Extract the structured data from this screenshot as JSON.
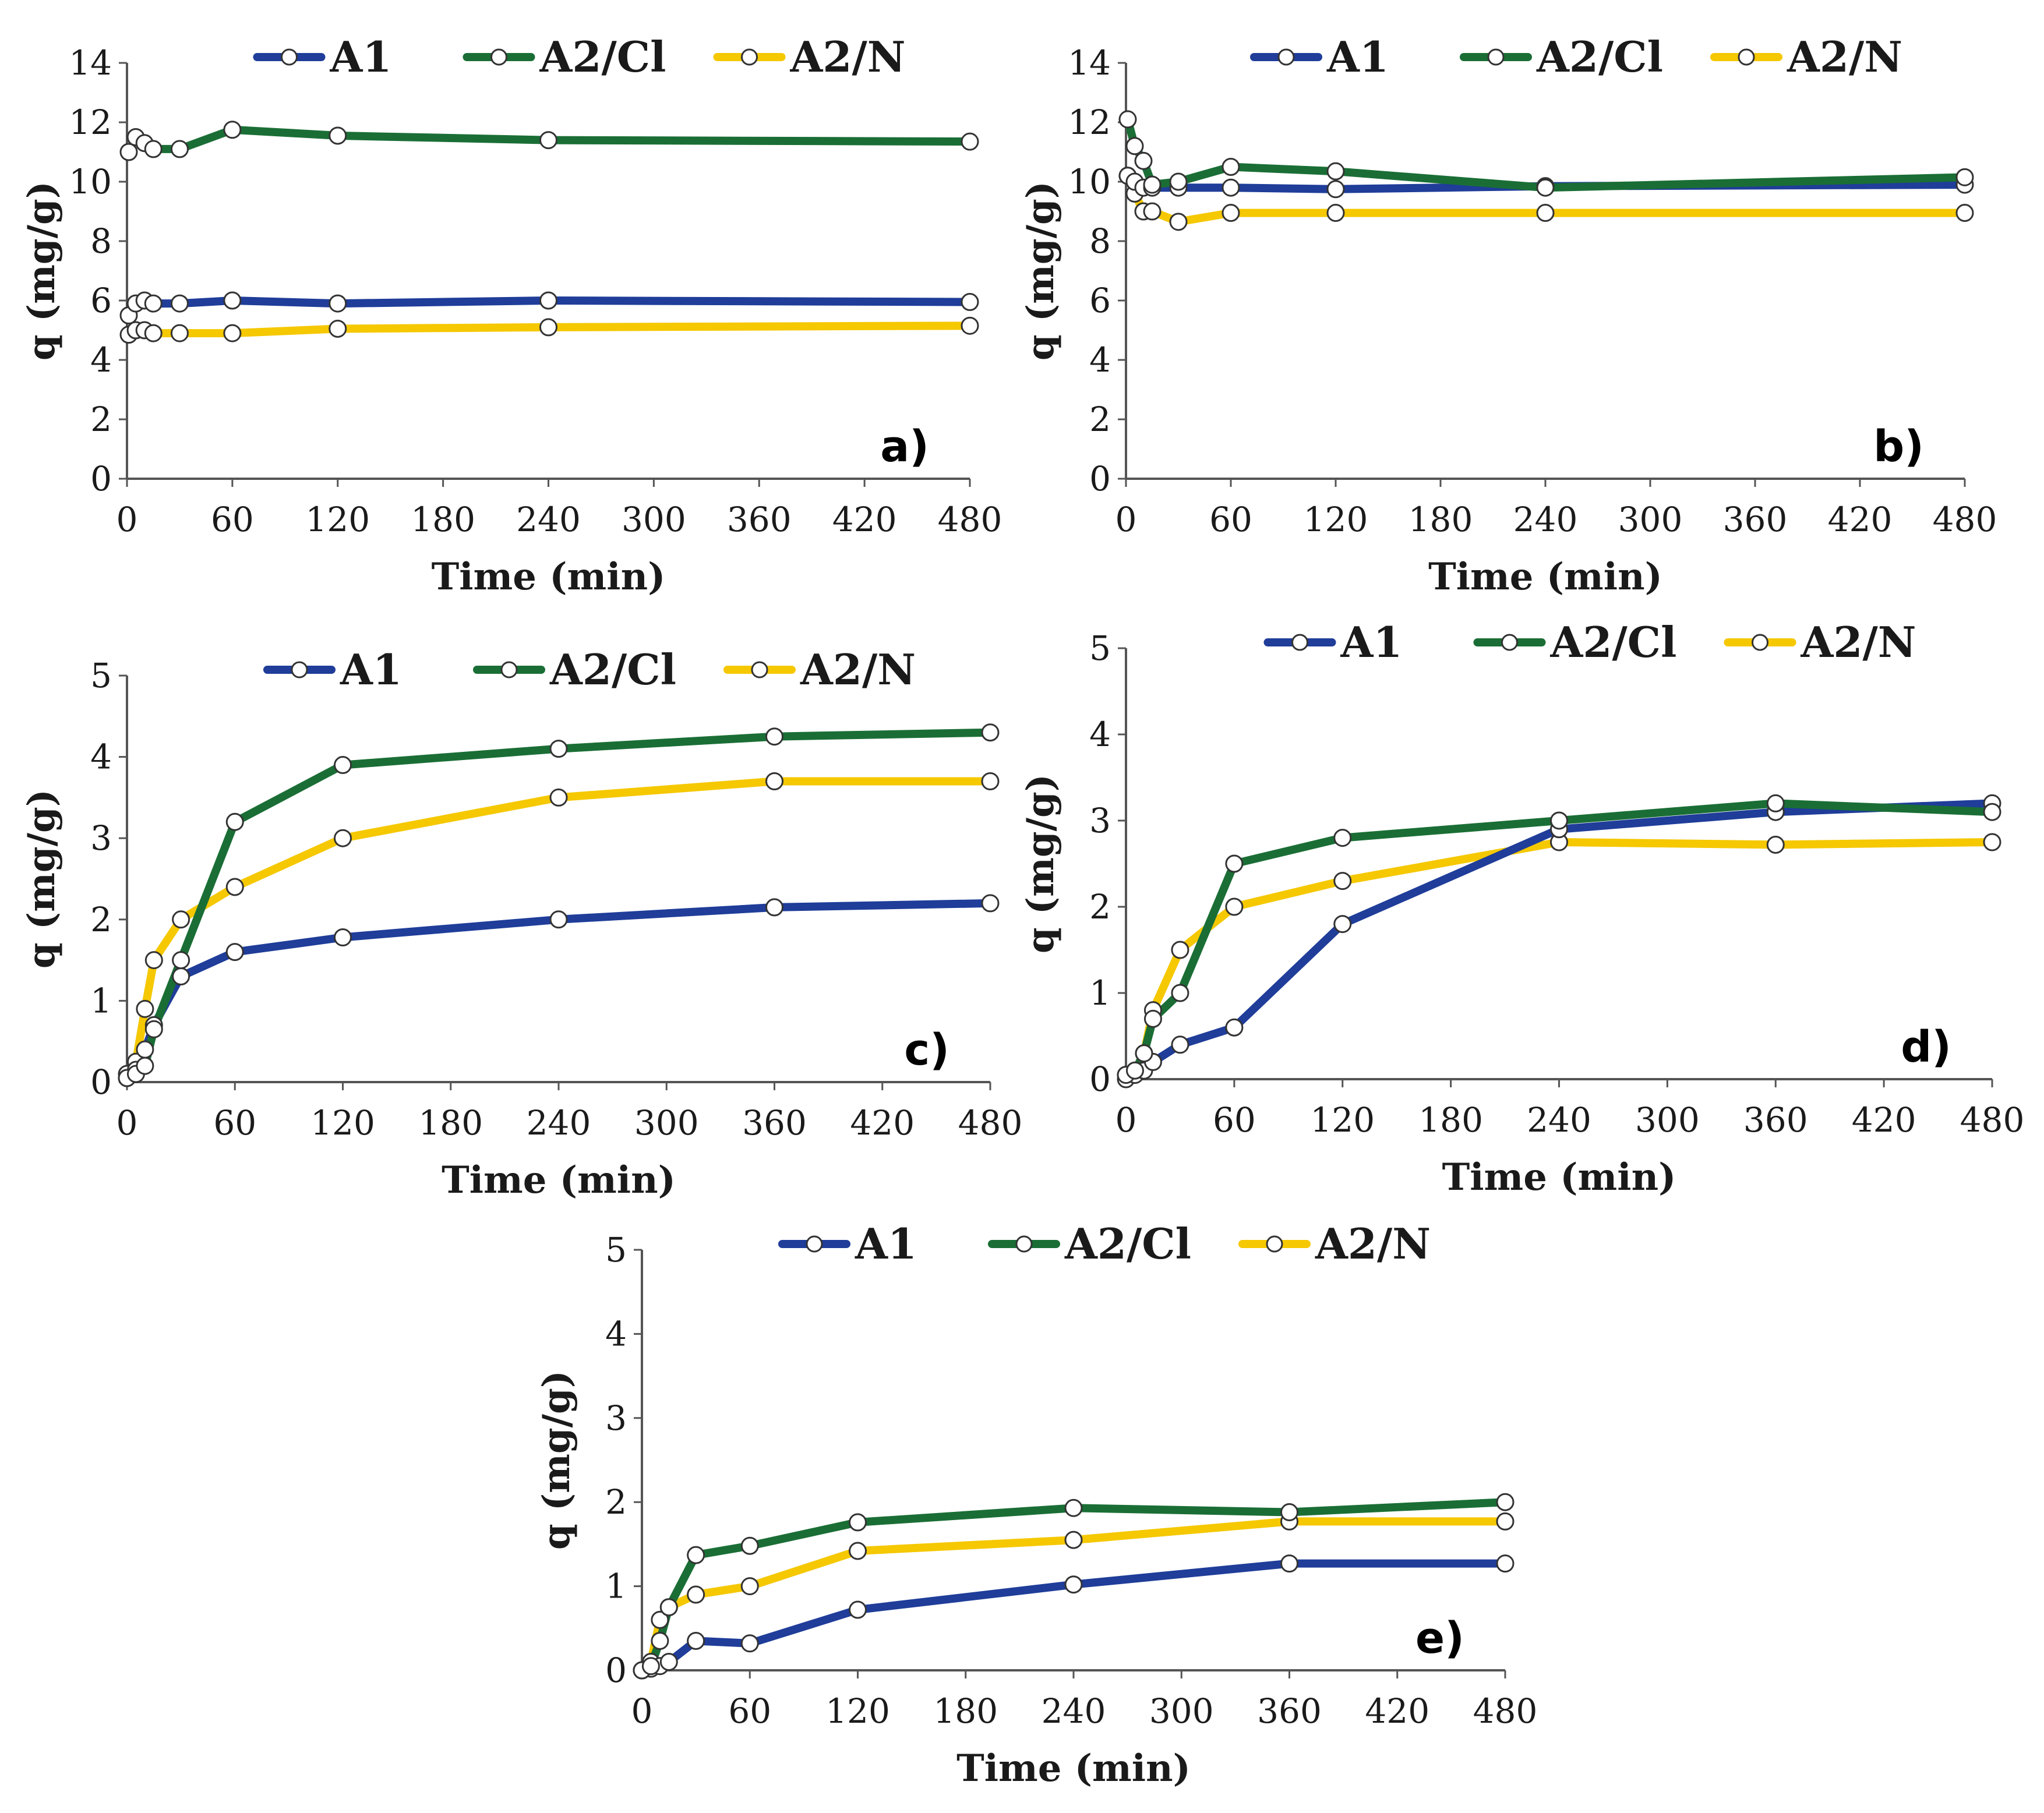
{
  "colors": {
    "A1": "#1f3d99",
    "A2/Cl": "#1a6e35",
    "A2/N": "#f5c800"
  },
  "chart_data": [
    {
      "type": "line",
      "panel_label": "a)",
      "xlabel": "Time (min)",
      "ylabel": "q (mg/g)",
      "xlim": [
        0,
        480
      ],
      "ylim": [
        0,
        14
      ],
      "xticks": [
        0,
        60,
        120,
        180,
        240,
        300,
        360,
        420,
        480
      ],
      "yticks": [
        0,
        2,
        4,
        6,
        8,
        10,
        12,
        14
      ],
      "legend": [
        "A1",
        "A2/Cl",
        "A2/N"
      ],
      "series": [
        {
          "name": "A1",
          "x": [
            1,
            5,
            10,
            15,
            30,
            60,
            120,
            240,
            480
          ],
          "y": [
            5.5,
            5.9,
            6.0,
            5.9,
            5.9,
            6.0,
            5.9,
            6.0,
            5.95
          ]
        },
        {
          "name": "A2/Cl",
          "x": [
            1,
            5,
            10,
            15,
            30,
            60,
            120,
            240,
            480
          ],
          "y": [
            11.0,
            11.5,
            11.3,
            11.1,
            11.1,
            11.75,
            11.55,
            11.4,
            11.35
          ]
        },
        {
          "name": "A2/N",
          "x": [
            1,
            5,
            10,
            15,
            30,
            60,
            120,
            240,
            480
          ],
          "y": [
            4.85,
            5.0,
            5.0,
            4.9,
            4.9,
            4.9,
            5.05,
            5.1,
            5.15
          ]
        }
      ]
    },
    {
      "type": "line",
      "panel_label": "b)",
      "xlabel": "Time (min)",
      "ylabel": "q (mg/g)",
      "xlim": [
        0,
        480
      ],
      "ylim": [
        0,
        14
      ],
      "xticks": [
        0,
        60,
        120,
        180,
        240,
        300,
        360,
        420,
        480
      ],
      "yticks": [
        0,
        2,
        4,
        6,
        8,
        10,
        12,
        14
      ],
      "legend": [
        "A1",
        "A2/Cl",
        "A2/N"
      ],
      "series": [
        {
          "name": "A1",
          "x": [
            1,
            5,
            10,
            15,
            30,
            60,
            120,
            240,
            480
          ],
          "y": [
            10.2,
            10.0,
            9.8,
            9.8,
            9.8,
            9.8,
            9.75,
            9.85,
            9.9
          ]
        },
        {
          "name": "A2/Cl",
          "x": [
            1,
            5,
            10,
            15,
            30,
            60,
            120,
            240,
            480
          ],
          "y": [
            12.1,
            11.2,
            10.7,
            9.9,
            10.0,
            10.5,
            10.35,
            9.8,
            10.15
          ]
        },
        {
          "name": "A2/N",
          "x": [
            1,
            5,
            10,
            15,
            30,
            60,
            120,
            240,
            480
          ],
          "y": [
            10.2,
            9.6,
            9.0,
            9.0,
            8.65,
            8.95,
            8.95,
            8.95,
            8.95
          ]
        }
      ]
    },
    {
      "type": "line",
      "panel_label": "c)",
      "xlabel": "Time (min)",
      "ylabel": "q (mg/g)",
      "xlim": [
        0,
        480
      ],
      "ylim": [
        0,
        5
      ],
      "xticks": [
        0,
        60,
        120,
        180,
        240,
        300,
        360,
        420,
        480
      ],
      "yticks": [
        0,
        1,
        2,
        3,
        4,
        5
      ],
      "legend": [
        "A1",
        "A2/Cl",
        "A2/N"
      ],
      "series": [
        {
          "name": "A1",
          "x": [
            0,
            5,
            10,
            15,
            30,
            60,
            120,
            240,
            360,
            480
          ],
          "y": [
            0.05,
            0.15,
            0.4,
            0.7,
            1.3,
            1.6,
            1.78,
            2.0,
            2.15,
            2.2
          ]
        },
        {
          "name": "A2/Cl",
          "x": [
            0,
            5,
            10,
            15,
            30,
            60,
            120,
            240,
            360,
            480
          ],
          "y": [
            0.05,
            0.1,
            0.2,
            0.65,
            1.5,
            3.2,
            3.9,
            4.1,
            4.25,
            4.3
          ]
        },
        {
          "name": "A2/N",
          "x": [
            0,
            5,
            10,
            15,
            30,
            60,
            120,
            240,
            360,
            480
          ],
          "y": [
            0.1,
            0.25,
            0.9,
            1.5,
            2.0,
            2.4,
            3.0,
            3.5,
            3.7,
            3.7
          ]
        }
      ]
    },
    {
      "type": "line",
      "panel_label": "d)",
      "xlabel": "Time (min)",
      "ylabel": "q (mg/g)",
      "xlim": [
        0,
        480
      ],
      "ylim": [
        0,
        5
      ],
      "xticks": [
        0,
        60,
        120,
        180,
        240,
        300,
        360,
        420,
        480
      ],
      "yticks": [
        0,
        1,
        2,
        3,
        4,
        5
      ],
      "legend": [
        "A1",
        "A2/Cl",
        "A2/N"
      ],
      "series": [
        {
          "name": "A1",
          "x": [
            0,
            5,
            10,
            15,
            30,
            60,
            120,
            240,
            360,
            480
          ],
          "y": [
            0.0,
            0.05,
            0.1,
            0.2,
            0.4,
            0.6,
            1.8,
            2.9,
            3.1,
            3.2
          ]
        },
        {
          "name": "A2/Cl",
          "x": [
            0,
            5,
            10,
            15,
            30,
            60,
            120,
            240,
            360,
            480
          ],
          "y": [
            0.05,
            0.1,
            0.3,
            0.7,
            1.0,
            2.5,
            2.8,
            3.0,
            3.2,
            3.1
          ]
        },
        {
          "name": "A2/N",
          "x": [
            0,
            5,
            10,
            15,
            30,
            60,
            120,
            240,
            360,
            480
          ],
          "y": [
            0.05,
            0.1,
            0.3,
            0.8,
            1.5,
            2.0,
            2.3,
            2.75,
            2.72,
            2.75
          ]
        }
      ]
    },
    {
      "type": "line",
      "panel_label": "e)",
      "xlabel": "Time (min)",
      "ylabel": "q (mg/g)",
      "xlim": [
        0,
        480
      ],
      "ylim": [
        0,
        5
      ],
      "xticks": [
        0,
        60,
        120,
        180,
        240,
        300,
        360,
        420,
        480
      ],
      "yticks": [
        0,
        1,
        2,
        3,
        4,
        5
      ],
      "legend": [
        "A1",
        "A2/Cl",
        "A2/N"
      ],
      "series": [
        {
          "name": "A1",
          "x": [
            0,
            5,
            10,
            15,
            30,
            60,
            120,
            240,
            360,
            480
          ],
          "y": [
            0.0,
            0.02,
            0.05,
            0.1,
            0.35,
            0.32,
            0.72,
            1.02,
            1.27,
            1.27
          ]
        },
        {
          "name": "A2/Cl",
          "x": [
            0,
            5,
            10,
            15,
            30,
            60,
            120,
            240,
            360,
            480
          ],
          "y": [
            0.0,
            0.05,
            0.35,
            0.75,
            1.37,
            1.48,
            1.76,
            1.93,
            1.88,
            2.0
          ]
        },
        {
          "name": "A2/N",
          "x": [
            0,
            5,
            10,
            15,
            30,
            60,
            120,
            240,
            360,
            480
          ],
          "y": [
            0.0,
            0.1,
            0.6,
            0.75,
            0.9,
            1.0,
            1.42,
            1.55,
            1.77,
            1.77
          ]
        }
      ]
    }
  ]
}
